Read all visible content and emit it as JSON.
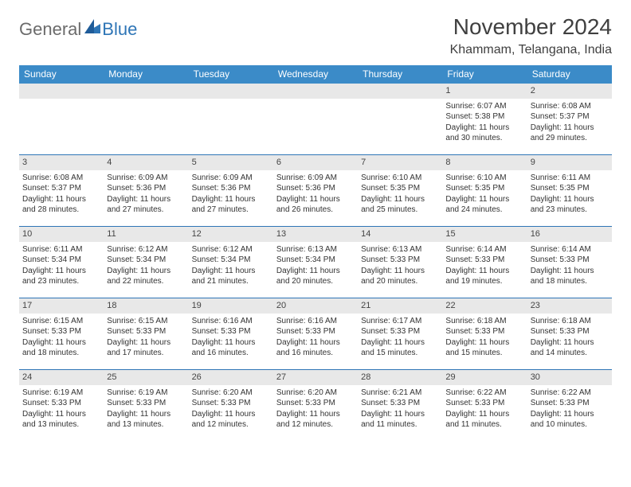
{
  "logo": {
    "general": "General",
    "blue": "Blue"
  },
  "title": "November 2024",
  "location": "Khammam, Telangana, India",
  "style": {
    "header_bg": "#3b8bc8",
    "header_fg": "#ffffff",
    "border_color": "#2e75b6",
    "daynum_bg": "#e8e8e8",
    "body_font_size": 10,
    "title_font_size": 28,
    "location_font_size": 16
  },
  "weekdays": [
    "Sunday",
    "Monday",
    "Tuesday",
    "Wednesday",
    "Thursday",
    "Friday",
    "Saturday"
  ],
  "weeks": [
    [
      null,
      null,
      null,
      null,
      null,
      {
        "n": "1",
        "sr": "Sunrise: 6:07 AM",
        "ss": "Sunset: 5:38 PM",
        "d1": "Daylight: 11 hours",
        "d2": "and 30 minutes."
      },
      {
        "n": "2",
        "sr": "Sunrise: 6:08 AM",
        "ss": "Sunset: 5:37 PM",
        "d1": "Daylight: 11 hours",
        "d2": "and 29 minutes."
      }
    ],
    [
      {
        "n": "3",
        "sr": "Sunrise: 6:08 AM",
        "ss": "Sunset: 5:37 PM",
        "d1": "Daylight: 11 hours",
        "d2": "and 28 minutes."
      },
      {
        "n": "4",
        "sr": "Sunrise: 6:09 AM",
        "ss": "Sunset: 5:36 PM",
        "d1": "Daylight: 11 hours",
        "d2": "and 27 minutes."
      },
      {
        "n": "5",
        "sr": "Sunrise: 6:09 AM",
        "ss": "Sunset: 5:36 PM",
        "d1": "Daylight: 11 hours",
        "d2": "and 27 minutes."
      },
      {
        "n": "6",
        "sr": "Sunrise: 6:09 AM",
        "ss": "Sunset: 5:36 PM",
        "d1": "Daylight: 11 hours",
        "d2": "and 26 minutes."
      },
      {
        "n": "7",
        "sr": "Sunrise: 6:10 AM",
        "ss": "Sunset: 5:35 PM",
        "d1": "Daylight: 11 hours",
        "d2": "and 25 minutes."
      },
      {
        "n": "8",
        "sr": "Sunrise: 6:10 AM",
        "ss": "Sunset: 5:35 PM",
        "d1": "Daylight: 11 hours",
        "d2": "and 24 minutes."
      },
      {
        "n": "9",
        "sr": "Sunrise: 6:11 AM",
        "ss": "Sunset: 5:35 PM",
        "d1": "Daylight: 11 hours",
        "d2": "and 23 minutes."
      }
    ],
    [
      {
        "n": "10",
        "sr": "Sunrise: 6:11 AM",
        "ss": "Sunset: 5:34 PM",
        "d1": "Daylight: 11 hours",
        "d2": "and 23 minutes."
      },
      {
        "n": "11",
        "sr": "Sunrise: 6:12 AM",
        "ss": "Sunset: 5:34 PM",
        "d1": "Daylight: 11 hours",
        "d2": "and 22 minutes."
      },
      {
        "n": "12",
        "sr": "Sunrise: 6:12 AM",
        "ss": "Sunset: 5:34 PM",
        "d1": "Daylight: 11 hours",
        "d2": "and 21 minutes."
      },
      {
        "n": "13",
        "sr": "Sunrise: 6:13 AM",
        "ss": "Sunset: 5:34 PM",
        "d1": "Daylight: 11 hours",
        "d2": "and 20 minutes."
      },
      {
        "n": "14",
        "sr": "Sunrise: 6:13 AM",
        "ss": "Sunset: 5:33 PM",
        "d1": "Daylight: 11 hours",
        "d2": "and 20 minutes."
      },
      {
        "n": "15",
        "sr": "Sunrise: 6:14 AM",
        "ss": "Sunset: 5:33 PM",
        "d1": "Daylight: 11 hours",
        "d2": "and 19 minutes."
      },
      {
        "n": "16",
        "sr": "Sunrise: 6:14 AM",
        "ss": "Sunset: 5:33 PM",
        "d1": "Daylight: 11 hours",
        "d2": "and 18 minutes."
      }
    ],
    [
      {
        "n": "17",
        "sr": "Sunrise: 6:15 AM",
        "ss": "Sunset: 5:33 PM",
        "d1": "Daylight: 11 hours",
        "d2": "and 18 minutes."
      },
      {
        "n": "18",
        "sr": "Sunrise: 6:15 AM",
        "ss": "Sunset: 5:33 PM",
        "d1": "Daylight: 11 hours",
        "d2": "and 17 minutes."
      },
      {
        "n": "19",
        "sr": "Sunrise: 6:16 AM",
        "ss": "Sunset: 5:33 PM",
        "d1": "Daylight: 11 hours",
        "d2": "and 16 minutes."
      },
      {
        "n": "20",
        "sr": "Sunrise: 6:16 AM",
        "ss": "Sunset: 5:33 PM",
        "d1": "Daylight: 11 hours",
        "d2": "and 16 minutes."
      },
      {
        "n": "21",
        "sr": "Sunrise: 6:17 AM",
        "ss": "Sunset: 5:33 PM",
        "d1": "Daylight: 11 hours",
        "d2": "and 15 minutes."
      },
      {
        "n": "22",
        "sr": "Sunrise: 6:18 AM",
        "ss": "Sunset: 5:33 PM",
        "d1": "Daylight: 11 hours",
        "d2": "and 15 minutes."
      },
      {
        "n": "23",
        "sr": "Sunrise: 6:18 AM",
        "ss": "Sunset: 5:33 PM",
        "d1": "Daylight: 11 hours",
        "d2": "and 14 minutes."
      }
    ],
    [
      {
        "n": "24",
        "sr": "Sunrise: 6:19 AM",
        "ss": "Sunset: 5:33 PM",
        "d1": "Daylight: 11 hours",
        "d2": "and 13 minutes."
      },
      {
        "n": "25",
        "sr": "Sunrise: 6:19 AM",
        "ss": "Sunset: 5:33 PM",
        "d1": "Daylight: 11 hours",
        "d2": "and 13 minutes."
      },
      {
        "n": "26",
        "sr": "Sunrise: 6:20 AM",
        "ss": "Sunset: 5:33 PM",
        "d1": "Daylight: 11 hours",
        "d2": "and 12 minutes."
      },
      {
        "n": "27",
        "sr": "Sunrise: 6:20 AM",
        "ss": "Sunset: 5:33 PM",
        "d1": "Daylight: 11 hours",
        "d2": "and 12 minutes."
      },
      {
        "n": "28",
        "sr": "Sunrise: 6:21 AM",
        "ss": "Sunset: 5:33 PM",
        "d1": "Daylight: 11 hours",
        "d2": "and 11 minutes."
      },
      {
        "n": "29",
        "sr": "Sunrise: 6:22 AM",
        "ss": "Sunset: 5:33 PM",
        "d1": "Daylight: 11 hours",
        "d2": "and 11 minutes."
      },
      {
        "n": "30",
        "sr": "Sunrise: 6:22 AM",
        "ss": "Sunset: 5:33 PM",
        "d1": "Daylight: 11 hours",
        "d2": "and 10 minutes."
      }
    ]
  ]
}
